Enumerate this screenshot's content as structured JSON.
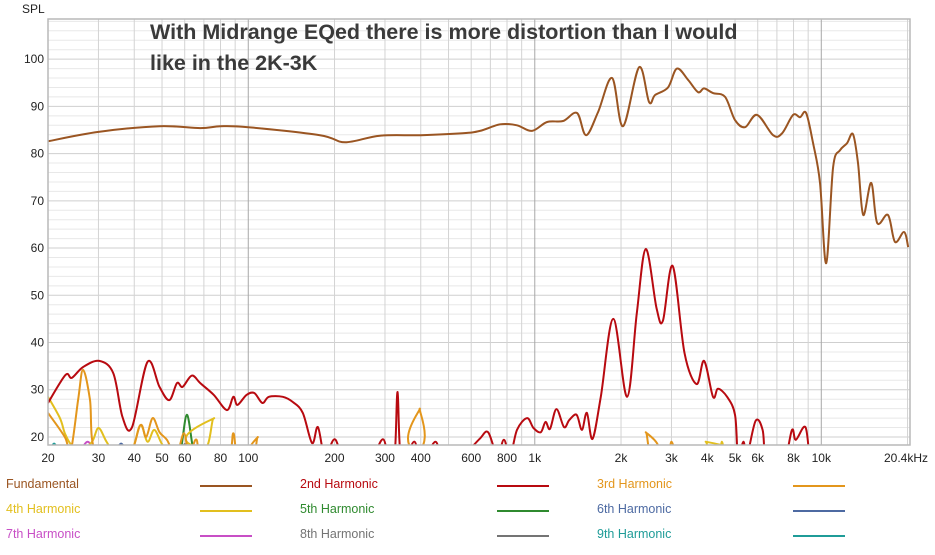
{
  "chart_data": {
    "type": "line",
    "title": "With Midrange EQed there is more distortion than I would like in the 2K-3K",
    "ylabel": "SPL",
    "xlabel": "Hz",
    "xscale": "log",
    "xlim": [
      20,
      20400
    ],
    "ylim": [
      18.3,
      108.5
    ],
    "grid": true,
    "legend_placement": "bottom",
    "yticks": [
      20,
      30,
      40,
      50,
      60,
      70,
      80,
      90,
      100
    ],
    "xticks": [
      {
        "v": 20,
        "label": "20"
      },
      {
        "v": 30,
        "label": "30"
      },
      {
        "v": 40,
        "label": "40"
      },
      {
        "v": 50,
        "label": "50"
      },
      {
        "v": 60,
        "label": "60"
      },
      {
        "v": 80,
        "label": "80"
      },
      {
        "v": 100,
        "label": "100"
      },
      {
        "v": 200,
        "label": "200"
      },
      {
        "v": 300,
        "label": "300"
      },
      {
        "v": 400,
        "label": "400"
      },
      {
        "v": 600,
        "label": "600"
      },
      {
        "v": 800,
        "label": "800"
      },
      {
        "v": 1000,
        "label": "1k"
      },
      {
        "v": 2000,
        "label": "2k"
      },
      {
        "v": 3000,
        "label": "3k"
      },
      {
        "v": 4000,
        "label": "4k"
      },
      {
        "v": 5000,
        "label": "5k"
      },
      {
        "v": 6000,
        "label": "6k"
      },
      {
        "v": 8000,
        "label": "8k"
      },
      {
        "v": 10000,
        "label": "10k"
      },
      {
        "v": 20400,
        "label": "20.4kHz"
      }
    ],
    "series": [
      {
        "name": "Fundamental",
        "color": "#9a5522",
        "points": [
          [
            20,
            82.6
          ],
          [
            30,
            84.6
          ],
          [
            49,
            85.8
          ],
          [
            68,
            85.4
          ],
          [
            80,
            85.8
          ],
          [
            100,
            85.6
          ],
          [
            178,
            83.9
          ],
          [
            218,
            82.4
          ],
          [
            288,
            83.8
          ],
          [
            400,
            83.9
          ],
          [
            560,
            84.3
          ],
          [
            644,
            84.8
          ],
          [
            757,
            86.2
          ],
          [
            867,
            86
          ],
          [
            978,
            84.8
          ],
          [
            1104,
            86.7
          ],
          [
            1256,
            86.9
          ],
          [
            1404,
            88.6
          ],
          [
            1510,
            83.9
          ],
          [
            1663,
            88.8
          ],
          [
            1862,
            96
          ],
          [
            2032,
            85.8
          ],
          [
            2312,
            98.3
          ],
          [
            2506,
            90.9
          ],
          [
            2630,
            92.4
          ],
          [
            2917,
            94
          ],
          [
            3134,
            98
          ],
          [
            3428,
            95.6
          ],
          [
            3715,
            93
          ],
          [
            3898,
            93.8
          ],
          [
            4190,
            92.8
          ],
          [
            4615,
            92
          ],
          [
            5000,
            87.1
          ],
          [
            5420,
            85.6
          ],
          [
            5970,
            88.2
          ],
          [
            6790,
            83.9
          ],
          [
            7300,
            84.3
          ],
          [
            7970,
            88.2
          ],
          [
            8430,
            87.7
          ],
          [
            8850,
            88.6
          ],
          [
            9360,
            82.2
          ],
          [
            9900,
            73.8
          ],
          [
            10400,
            56.8
          ],
          [
            11000,
            77.1
          ],
          [
            11620,
            80.7
          ],
          [
            12300,
            82.2
          ],
          [
            12900,
            84.1
          ],
          [
            13430,
            78
          ],
          [
            14000,
            67
          ],
          [
            14930,
            73.8
          ],
          [
            15670,
            65.3
          ],
          [
            17100,
            67
          ],
          [
            18080,
            61.3
          ],
          [
            19450,
            63.4
          ],
          [
            20100,
            60.2
          ]
        ]
      },
      {
        "name": "2nd Harmonic",
        "color": "#b80a10",
        "points": [
          [
            20,
            27.2
          ],
          [
            23,
            33.1
          ],
          [
            24.2,
            32.5
          ],
          [
            26.5,
            34.8
          ],
          [
            30.2,
            36.1
          ],
          [
            33.8,
            33.5
          ],
          [
            36.4,
            24.2
          ],
          [
            39.3,
            22.1
          ],
          [
            44.5,
            35.9
          ],
          [
            49,
            30.6
          ],
          [
            53,
            27.8
          ],
          [
            56.4,
            31.4
          ],
          [
            59,
            30.6
          ],
          [
            63.5,
            33
          ],
          [
            68,
            31.4
          ],
          [
            75.8,
            28.9
          ],
          [
            84.2,
            25.7
          ],
          [
            88.7,
            28.5
          ],
          [
            91.7,
            26.8
          ],
          [
            98.6,
            28.9
          ],
          [
            105,
            29.3
          ],
          [
            112,
            27.2
          ],
          [
            118,
            28.5
          ],
          [
            132,
            28.5
          ],
          [
            143,
            27.4
          ],
          [
            155,
            25.1
          ],
          [
            167,
            18.7
          ],
          [
            175,
            22.1
          ],
          [
            185,
            16
          ],
          [
            200,
            19.5
          ],
          [
            215,
            16
          ],
          [
            260,
            14
          ],
          [
            295,
            19.5
          ],
          [
            310,
            14
          ],
          [
            325,
            17
          ],
          [
            332,
            29.5
          ],
          [
            342,
            15
          ],
          [
            380,
            19
          ],
          [
            400,
            14
          ],
          [
            450,
            19
          ],
          [
            480,
            14
          ],
          [
            560,
            16
          ],
          [
            640,
            19.5
          ],
          [
            687,
            21
          ],
          [
            740,
            16
          ],
          [
            780,
            19.4
          ],
          [
            820,
            16
          ],
          [
            867,
            21.5
          ],
          [
            940,
            24
          ],
          [
            990,
            21.9
          ],
          [
            1050,
            21
          ],
          [
            1090,
            23.2
          ],
          [
            1130,
            21.7
          ],
          [
            1190,
            25.9
          ],
          [
            1265,
            22.1
          ],
          [
            1320,
            23.6
          ],
          [
            1400,
            24.7
          ],
          [
            1460,
            21.5
          ],
          [
            1520,
            25.1
          ],
          [
            1590,
            19.6
          ],
          [
            1700,
            28.5
          ],
          [
            1880,
            45
          ],
          [
            2100,
            28.5
          ],
          [
            2270,
            46.2
          ],
          [
            2440,
            59.8
          ],
          [
            2660,
            47.3
          ],
          [
            2800,
            44.6
          ],
          [
            3030,
            56.2
          ],
          [
            3330,
            37.8
          ],
          [
            3670,
            31.2
          ],
          [
            3900,
            36.1
          ],
          [
            4190,
            28.5
          ],
          [
            4360,
            30.2
          ],
          [
            4690,
            28.5
          ],
          [
            5000,
            24.7
          ],
          [
            5120,
            16
          ],
          [
            5350,
            19
          ],
          [
            5500,
            16
          ],
          [
            5900,
            23.4
          ],
          [
            6240,
            21.5
          ],
          [
            6450,
            15
          ],
          [
            7400,
            15
          ],
          [
            7900,
            21.5
          ],
          [
            8150,
            19.4
          ],
          [
            8800,
            22.1
          ],
          [
            9100,
            15
          ]
        ]
      },
      {
        "name": "3rd Harmonic",
        "color": "#e3961c",
        "points": [
          [
            20,
            25.1
          ],
          [
            22.9,
            20
          ],
          [
            24,
            17
          ],
          [
            25.5,
            28
          ],
          [
            26.5,
            34.2
          ],
          [
            28,
            28
          ],
          [
            29.3,
            17
          ],
          [
            38,
            16
          ],
          [
            42,
            22.5
          ],
          [
            44,
            20
          ],
          [
            46.4,
            24
          ],
          [
            49,
            21
          ],
          [
            52,
            19.4
          ],
          [
            56,
            16
          ],
          [
            59.6,
            20.8
          ],
          [
            62,
            16
          ],
          [
            64,
            18
          ],
          [
            66,
            19.4
          ],
          [
            69,
            16
          ],
          [
            85,
            16
          ],
          [
            88.7,
            20.8
          ],
          [
            92,
            16
          ],
          [
            104,
            16
          ],
          [
            108,
            20
          ],
          [
            112,
            16
          ],
          [
            370,
            16
          ],
          [
            397,
            26
          ],
          [
            415,
            16
          ],
          [
            2350,
            16
          ],
          [
            2440,
            21
          ],
          [
            2550,
            16
          ],
          [
            2900,
            16
          ],
          [
            3000,
            19
          ],
          [
            3100,
            16
          ]
        ]
      },
      {
        "name": "4th Harmonic",
        "color": "#e2bf1e",
        "points": [
          [
            20,
            28.5
          ],
          [
            22,
            24
          ],
          [
            22.9,
            20.8
          ],
          [
            24,
            18.5
          ],
          [
            26,
            17
          ],
          [
            28.5,
            19
          ],
          [
            30,
            21.9
          ],
          [
            32,
            19
          ],
          [
            34,
            17
          ],
          [
            39,
            17
          ],
          [
            42,
            22.5
          ],
          [
            44.5,
            19
          ],
          [
            47,
            21.5
          ],
          [
            50,
            18.5
          ],
          [
            53,
            17
          ],
          [
            70,
            17
          ],
          [
            76,
            24
          ],
          [
            82,
            17
          ],
          [
            3800,
            16
          ],
          [
            3950,
            19
          ],
          [
            4100,
            16
          ],
          [
            4400,
            16
          ],
          [
            4500,
            19
          ],
          [
            4600,
            16
          ]
        ]
      },
      {
        "name": "5th Harmonic",
        "color": "#2f8a2f",
        "points": [
          [
            55,
            16
          ],
          [
            58,
            17
          ],
          [
            61,
            24.7
          ],
          [
            64,
            18
          ],
          [
            66,
            16
          ]
        ]
      },
      {
        "name": "6th Harmonic",
        "color": "#4d6aa2",
        "points": [
          [
            34,
            16
          ],
          [
            36,
            18.6
          ],
          [
            38,
            16
          ]
        ]
      },
      {
        "name": "7th Harmonic",
        "color": "#c84fc6",
        "points": [
          [
            25.5,
            16
          ],
          [
            27.5,
            19
          ],
          [
            29.5,
            16
          ]
        ]
      },
      {
        "name": "8th Harmonic",
        "color": "#747474",
        "points": [
          [
            58,
            16
          ],
          [
            60,
            18.5
          ],
          [
            62,
            16
          ]
        ]
      },
      {
        "name": "9th Harmonic",
        "color": "#1f9c98",
        "points": [
          [
            20,
            16
          ],
          [
            21,
            18.6
          ],
          [
            22,
            16
          ]
        ]
      }
    ]
  }
}
